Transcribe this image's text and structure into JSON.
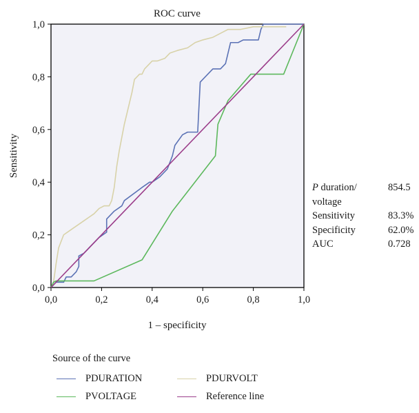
{
  "chart_data": {
    "type": "line",
    "title": "ROC curve",
    "xlabel": "1 – specificity",
    "ylabel": "Sensitivity",
    "xlim": [
      0,
      1
    ],
    "ylim": [
      0,
      1
    ],
    "x_ticks": [
      "0,0",
      "0,2",
      "0,4",
      "0,6",
      "0,8",
      "1,0"
    ],
    "y_ticks": [
      "0,0",
      "0,2",
      "0,4",
      "0,6",
      "0,8",
      "1,0"
    ],
    "grid": false,
    "plot_background": "#f2f2f8",
    "legend_title": "Source of the curve",
    "legend_position": "bottom",
    "series": [
      {
        "name": "PDURATION",
        "color": "#5b72b5",
        "points": [
          [
            0,
            0
          ],
          [
            0.02,
            0.02
          ],
          [
            0.05,
            0.02
          ],
          [
            0.06,
            0.04
          ],
          [
            0.08,
            0.04
          ],
          [
            0.1,
            0.06
          ],
          [
            0.11,
            0.08
          ],
          [
            0.11,
            0.12
          ],
          [
            0.13,
            0.13
          ],
          [
            0.19,
            0.19
          ],
          [
            0.22,
            0.21
          ],
          [
            0.22,
            0.26
          ],
          [
            0.25,
            0.29
          ],
          [
            0.28,
            0.31
          ],
          [
            0.29,
            0.33
          ],
          [
            0.36,
            0.38
          ],
          [
            0.39,
            0.4
          ],
          [
            0.4,
            0.4
          ],
          [
            0.43,
            0.42
          ],
          [
            0.46,
            0.45
          ],
          [
            0.48,
            0.5
          ],
          [
            0.49,
            0.54
          ],
          [
            0.52,
            0.58
          ],
          [
            0.54,
            0.59
          ],
          [
            0.58,
            0.59
          ],
          [
            0.59,
            0.78
          ],
          [
            0.62,
            0.81
          ],
          [
            0.64,
            0.83
          ],
          [
            0.67,
            0.83
          ],
          [
            0.69,
            0.85
          ],
          [
            0.71,
            0.93
          ],
          [
            0.74,
            0.93
          ],
          [
            0.76,
            0.94
          ],
          [
            0.82,
            0.94
          ],
          [
            0.83,
            0.98
          ],
          [
            0.84,
            1.0
          ],
          [
            0.87,
            1.0
          ],
          [
            1.0,
            1.0
          ]
        ]
      },
      {
        "name": "PDURVOLT",
        "color": "#d8d2a8",
        "points": [
          [
            0,
            0
          ],
          [
            0.01,
            0.02
          ],
          [
            0.02,
            0.09
          ],
          [
            0.03,
            0.15
          ],
          [
            0.05,
            0.2
          ],
          [
            0.08,
            0.22
          ],
          [
            0.11,
            0.24
          ],
          [
            0.14,
            0.26
          ],
          [
            0.17,
            0.28
          ],
          [
            0.19,
            0.3
          ],
          [
            0.21,
            0.31
          ],
          [
            0.23,
            0.31
          ],
          [
            0.24,
            0.33
          ],
          [
            0.25,
            0.38
          ],
          [
            0.26,
            0.46
          ],
          [
            0.27,
            0.52
          ],
          [
            0.28,
            0.57
          ],
          [
            0.29,
            0.62
          ],
          [
            0.3,
            0.66
          ],
          [
            0.31,
            0.7
          ],
          [
            0.32,
            0.74
          ],
          [
            0.33,
            0.79
          ],
          [
            0.34,
            0.8
          ],
          [
            0.35,
            0.81
          ],
          [
            0.36,
            0.81
          ],
          [
            0.37,
            0.83
          ],
          [
            0.39,
            0.85
          ],
          [
            0.4,
            0.86
          ],
          [
            0.42,
            0.86
          ],
          [
            0.45,
            0.87
          ],
          [
            0.47,
            0.89
          ],
          [
            0.5,
            0.9
          ],
          [
            0.54,
            0.91
          ],
          [
            0.57,
            0.93
          ],
          [
            0.6,
            0.94
          ],
          [
            0.64,
            0.95
          ],
          [
            0.68,
            0.97
          ],
          [
            0.7,
            0.98
          ],
          [
            0.75,
            0.98
          ],
          [
            0.8,
            0.99
          ],
          [
            0.85,
            0.99
          ],
          [
            0.93,
            0.99
          ]
        ]
      },
      {
        "name": "PVOLTAGE",
        "color": "#5cb85c",
        "points": [
          [
            0,
            0
          ],
          [
            0.01,
            0.02
          ],
          [
            0.02,
            0.025
          ],
          [
            0.17,
            0.025
          ],
          [
            0.36,
            0.105
          ],
          [
            0.48,
            0.29
          ],
          [
            0.65,
            0.5
          ],
          [
            0.66,
            0.62
          ],
          [
            0.7,
            0.71
          ],
          [
            0.79,
            0.81
          ],
          [
            0.92,
            0.81
          ],
          [
            1.0,
            1.0
          ]
        ]
      },
      {
        "name": "Reference line",
        "color": "#9b3d8a",
        "points": [
          [
            0,
            0
          ],
          [
            1,
            1
          ]
        ]
      }
    ]
  },
  "stats": {
    "rows": [
      {
        "label_italic": "P",
        "label": " duration/",
        "value": "854.5"
      },
      {
        "label": "voltage",
        "value": ""
      },
      {
        "label": "Sensitivity",
        "value": "83.3%"
      },
      {
        "label": "Specificity",
        "value": "62.0%"
      },
      {
        "label": "AUC",
        "value": "0.728"
      }
    ]
  }
}
